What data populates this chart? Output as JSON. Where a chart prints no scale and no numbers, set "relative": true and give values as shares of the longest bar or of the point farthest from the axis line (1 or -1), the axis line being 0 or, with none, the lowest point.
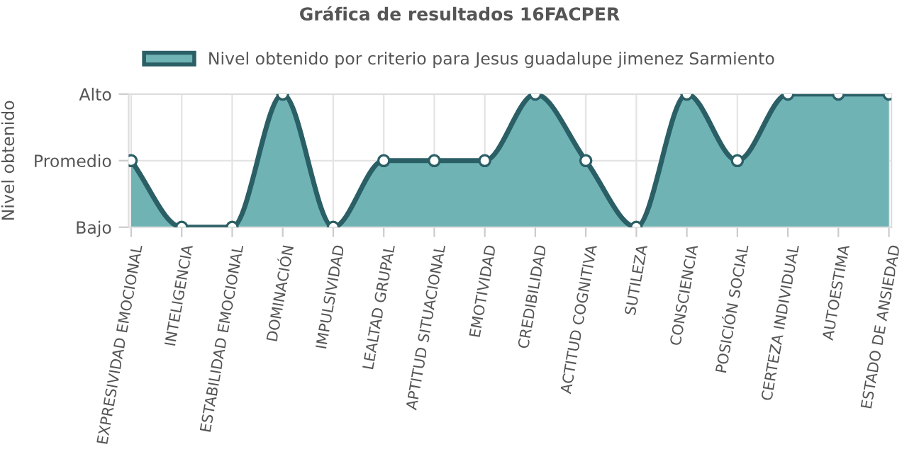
{
  "chart_data": {
    "type": "area",
    "title": "Gráfica de resultados 16FACPER",
    "ylabel": "Nivel obtenido",
    "categories": [
      "EXPRESIVIDAD EMOCIONAL",
      "INTELIGENCIA",
      "ESTABILIDAD EMOCIONAL",
      "DOMINACIÓN",
      "IMPULSIVIDAD",
      "LEALTAD GRUPAL",
      "APTITUD SITUACIONAL",
      "EMOTIVIDAD",
      "CREDIBILIDAD",
      "ACTITUD COGNITIVA",
      "SUTILEZA",
      "CONSCIENCIA",
      "POSICIÓN SOCIAL",
      "CERTEZA INDIVIDUAL",
      "AUTOESTIMA",
      "ESTADO DE ANSIEDAD"
    ],
    "series": [
      {
        "name": "Nivel obtenido por criterio para Jesus guadalupe jimenez Sarmiento",
        "color": "#6fb3b5",
        "values": [
          0.5,
          0,
          0,
          1,
          0,
          0.5,
          0.5,
          0.5,
          1,
          0.5,
          0,
          1,
          0.5,
          1,
          1,
          1
        ]
      }
    ],
    "relative": true,
    "y_categories": [
      "Alto",
      "Promedio",
      "Bajo"
    ],
    "grid": true,
    "legend": "top",
    "marker": "circle",
    "line_style": "solid"
  }
}
